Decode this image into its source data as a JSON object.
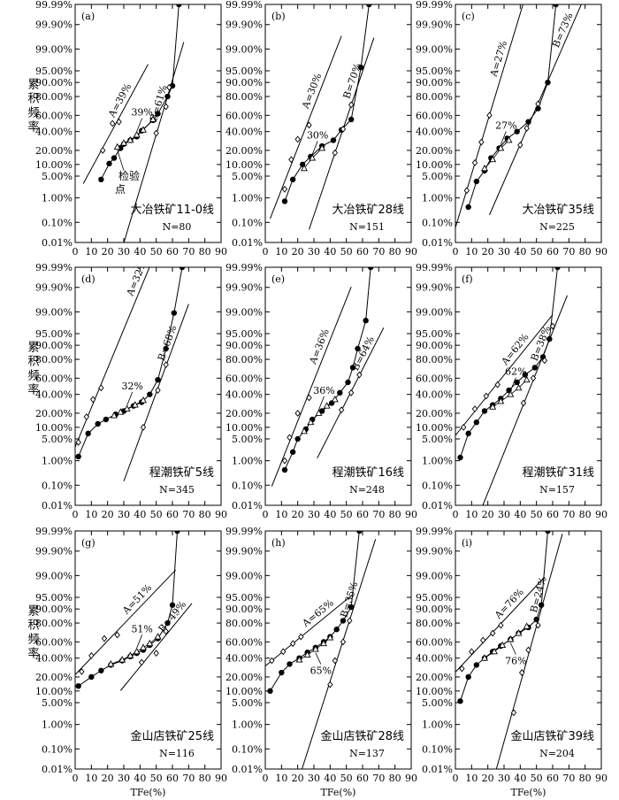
{
  "figure": {
    "ylabel": "累积频率",
    "xlabel": "TFe(%)",
    "y_ticks": [
      "0.01%",
      "0.10%",
      "1.00%",
      "5.00%",
      "10.00%",
      "20.00%",
      "40.00%",
      "60.00%",
      "80.00%",
      "90.00%",
      "95.00%",
      "99.00%",
      "99.90%",
      "99.99%"
    ],
    "y_tick_values": [
      0.01,
      0.1,
      1,
      5,
      10,
      20,
      40,
      60,
      80,
      90,
      95,
      99,
      99.9,
      99.99
    ],
    "x_ticks": [
      "0",
      "10",
      "20",
      "30",
      "40",
      "50",
      "60",
      "70",
      "80",
      "90"
    ],
    "x_tick_values": [
      0,
      10,
      20,
      30,
      40,
      50,
      60,
      70,
      80,
      90
    ],
    "inspection_label": [
      "检验",
      "点"
    ]
  },
  "chart_data": [
    {
      "type": "scatter",
      "panel": "(a)",
      "site": "大冶铁矿11-0线",
      "n_label": "N=80",
      "xlim": [
        0,
        90
      ],
      "ylim": [
        0.01,
        99.99
      ],
      "yscale": "probability",
      "line_a": {
        "label": "A=39%",
        "x": [
          5,
          45
        ]
      },
      "line_b": {
        "label": "B=61%",
        "x": [
          20,
          67
        ]
      },
      "mix_label": "39%",
      "series": [
        {
          "marker": "filled",
          "x": [
            16,
            21,
            24,
            28,
            30,
            34,
            38,
            41,
            48,
            51,
            57,
            60,
            64
          ],
          "y": [
            4,
            10.5,
            14,
            22,
            26,
            30,
            34,
            41,
            54,
            62,
            80,
            88,
            99.99
          ]
        },
        {
          "marker": "triangle",
          "x": [
            26,
            30,
            34,
            38,
            42,
            48
          ],
          "y": [
            23,
            27,
            30,
            36,
            42,
            55
          ]
        },
        {
          "marker": "open-diamond",
          "x": [
            17,
            23,
            27
          ],
          "y": [
            20,
            50,
            52
          ]
        },
        {
          "marker": "open-diamond",
          "x": [
            50,
            56,
            58
          ],
          "y": [
            38,
            70,
            87
          ]
        }
      ]
    },
    {
      "type": "scatter",
      "panel": "(b)",
      "site": "大冶铁矿28线",
      "n_label": "N=151",
      "xlim": [
        0,
        90
      ],
      "ylim": [
        0.01,
        99.99
      ],
      "yscale": "probability",
      "line_a": {
        "label": "A=30%",
        "x": [
          3,
          47
        ]
      },
      "line_b": {
        "label": "B=70%",
        "x": [
          27,
          67
        ]
      },
      "mix_label": "30%",
      "series": [
        {
          "marker": "filled",
          "x": [
            12,
            17,
            23,
            28,
            35,
            42,
            47,
            53,
            59,
            64
          ],
          "y": [
            0.75,
            4,
            10,
            15,
            24,
            30,
            42,
            55,
            96,
            99.99
          ]
        },
        {
          "marker": "triangle",
          "x": [
            24,
            29,
            35
          ],
          "y": [
            8,
            14,
            22
          ]
        },
        {
          "marker": "open-diamond",
          "x": [
            12,
            16,
            20,
            27
          ],
          "y": [
            2,
            13,
            31,
            48
          ]
        },
        {
          "marker": "open-diamond",
          "x": [
            43,
            48,
            53
          ],
          "y": [
            18,
            43,
            72
          ]
        }
      ]
    },
    {
      "type": "scatter",
      "panel": "(c)",
      "site": "大冶铁矿35线",
      "n_label": "N=225",
      "xlim": [
        0,
        90
      ],
      "ylim": [
        0.01,
        99.99
      ],
      "yscale": "probability",
      "line_a": {
        "label": "A=27%",
        "x": [
          0,
          45
        ]
      },
      "line_b": {
        "label": "B=73%",
        "x": [
          21,
          86
        ]
      },
      "mix_label": "27%",
      "series": [
        {
          "marker": "filled",
          "x": [
            8,
            13,
            18,
            22,
            27,
            32,
            38,
            45,
            51,
            57,
            62
          ],
          "y": [
            0.45,
            3.5,
            7,
            14,
            22,
            32,
            40,
            52,
            68,
            90,
            99.99
          ]
        },
        {
          "marker": "triangle",
          "x": [
            18,
            23,
            28,
            33
          ],
          "y": [
            8,
            13,
            22,
            30
          ]
        },
        {
          "marker": "open-diamond",
          "x": [
            7,
            12,
            16,
            21
          ],
          "y": [
            1.8,
            11,
            28,
            60
          ]
        },
        {
          "marker": "open-diamond",
          "x": [
            40,
            44,
            51
          ],
          "y": [
            25,
            44,
            73
          ]
        }
      ]
    },
    {
      "type": "scatter",
      "panel": "(d)",
      "site": "程潮铁矿5线",
      "n_label": "N=345",
      "xlim": [
        0,
        90
      ],
      "ylim": [
        0.01,
        99.99
      ],
      "yscale": "probability",
      "line_a": {
        "label": "A=32%",
        "x": [
          0,
          61
        ]
      },
      "line_b": {
        "label": "B=68%",
        "x": [
          30,
          70
        ]
      },
      "mix_label": "32%",
      "series": [
        {
          "marker": "filled",
          "x": [
            2,
            8,
            14,
            19,
            25,
            30,
            36,
            41,
            46,
            51,
            56,
            61,
            66
          ],
          "y": [
            1.4,
            7,
            12,
            15,
            19,
            22,
            27,
            31,
            40,
            58,
            88,
            98.9,
            99.99
          ]
        },
        {
          "marker": "triangle",
          "x": [
            24,
            28,
            32,
            37,
            42
          ],
          "y": [
            18,
            21,
            24,
            28,
            33
          ]
        },
        {
          "marker": "open-diamond",
          "x": [
            2,
            7,
            11,
            16
          ],
          "y": [
            4,
            17,
            34,
            48
          ]
        },
        {
          "marker": "open-diamond",
          "x": [
            42,
            51,
            56
          ],
          "y": [
            10,
            45,
            75
          ]
        }
      ]
    },
    {
      "type": "scatter",
      "panel": "(e)",
      "site": "程潮铁矿16线",
      "n_label": "N=248",
      "xlim": [
        0,
        90
      ],
      "ylim": [
        0.01,
        99.99
      ],
      "yscale": "probability",
      "line_a": {
        "label": "A=36%",
        "x": [
          4,
          53
        ]
      },
      "line_b": {
        "label": "B=64%",
        "x": [
          32,
          73
        ]
      },
      "mix_label": "36%",
      "series": [
        {
          "marker": "filled",
          "x": [
            12,
            17,
            20,
            25,
            29,
            35,
            41,
            46,
            51,
            54,
            57,
            62,
            65
          ],
          "y": [
            0.45,
            2,
            5,
            9,
            15,
            22,
            30,
            42,
            55,
            72,
            88,
            98,
            99.99
          ]
        },
        {
          "marker": "triangle",
          "x": [
            24,
            28,
            33,
            38,
            43
          ],
          "y": [
            8,
            13,
            20,
            27,
            34
          ]
        },
        {
          "marker": "open-diamond",
          "x": [
            12,
            15,
            20,
            27
          ],
          "y": [
            1,
            5.5,
            20,
            36
          ]
        },
        {
          "marker": "open-diamond",
          "x": [
            47,
            53,
            58
          ],
          "y": [
            23,
            42,
            64
          ]
        }
      ]
    },
    {
      "type": "scatter",
      "panel": "(f)",
      "site": "程潮铁矿31线",
      "n_label": "N=157",
      "xlim": [
        0,
        90
      ],
      "ylim": [
        0.01,
        99.99
      ],
      "yscale": "probability",
      "line_a": {
        "label": "A=62%",
        "x": [
          0,
          60
        ]
      },
      "line_b": {
        "label": "B=38%",
        "x": [
          17,
          69
        ]
      },
      "mix_label": "62%",
      "series": [
        {
          "marker": "filled",
          "x": [
            3,
            8,
            13,
            18,
            23,
            28,
            33,
            38,
            43,
            49,
            54,
            58,
            63
          ],
          "y": [
            1.3,
            7,
            13,
            22,
            28,
            35,
            45,
            55,
            64,
            72,
            82,
            93,
            99.99
          ]
        },
        {
          "marker": "triangle",
          "x": [
            23,
            28,
            34,
            39,
            44
          ],
          "y": [
            26,
            32,
            40,
            48,
            58
          ]
        },
        {
          "marker": "open-diamond",
          "x": [
            5,
            12,
            19,
            26
          ],
          "y": [
            10,
            24,
            38,
            52
          ]
        },
        {
          "marker": "open-diamond",
          "x": [
            42,
            48,
            55,
            60
          ],
          "y": [
            30,
            60,
            79,
            97
          ]
        }
      ]
    },
    {
      "type": "scatter",
      "panel": "(g)",
      "site": "金山店铁矿25线",
      "n_label": "N=116",
      "xlim": [
        0,
        90
      ],
      "ylim": [
        0.01,
        99.99
      ],
      "yscale": "probability",
      "line_a": {
        "label": "A=51%",
        "x": [
          0,
          62
        ]
      },
      "line_b": {
        "label": "B=49%",
        "x": [
          28,
          72
        ]
      },
      "mix_label": "51%",
      "series": [
        {
          "marker": "filled",
          "x": [
            2,
            10,
            16,
            22,
            29,
            34,
            38,
            42,
            46,
            51,
            57,
            60,
            63
          ],
          "y": [
            13,
            20,
            26,
            32,
            37,
            42,
            46,
            50,
            56,
            64,
            80,
            92,
            99.99
          ]
        },
        {
          "marker": "triangle",
          "x": [
            22,
            29,
            34,
            38,
            42,
            46,
            51
          ],
          "y": [
            33,
            38,
            43,
            48,
            53,
            58,
            66
          ]
        },
        {
          "marker": "open-diamond",
          "x": [
            4,
            10,
            18,
            26
          ],
          "y": [
            25,
            43,
            64,
            68
          ]
        },
        {
          "marker": "open-diamond",
          "x": [
            41,
            50,
            56
          ],
          "y": [
            35,
            46,
            72
          ]
        }
      ]
    },
    {
      "type": "scatter",
      "panel": "(h)",
      "site": "金山店铁矿28线",
      "n_label": "N=137",
      "xlim": [
        0,
        90
      ],
      "ylim": [
        0.01,
        99.99
      ],
      "yscale": "probability",
      "line_a": {
        "label": "A=65%",
        "x": [
          0,
          54
        ]
      },
      "line_b": {
        "label": "B=35%",
        "x": [
          18,
          68
        ]
      },
      "mix_label": "65%",
      "series": [
        {
          "marker": "filled",
          "x": [
            3,
            10,
            15,
            21,
            26,
            31,
            36,
            40,
            44,
            48,
            53,
            58
          ],
          "y": [
            10,
            24,
            33,
            40,
            47,
            53,
            60,
            66,
            74,
            82,
            91,
            99.99
          ]
        },
        {
          "marker": "triangle",
          "x": [
            21,
            26,
            31,
            36,
            40
          ],
          "y": [
            38,
            44,
            51,
            58,
            65
          ]
        },
        {
          "marker": "open-diamond",
          "x": [
            4,
            11,
            17,
            22
          ],
          "y": [
            37,
            48,
            58,
            66
          ]
        },
        {
          "marker": "open-diamond",
          "x": [
            40,
            43,
            48,
            52
          ],
          "y": [
            14,
            37,
            60,
            82
          ]
        }
      ]
    },
    {
      "type": "scatter",
      "panel": "(i)",
      "site": "金山店铁矿39线",
      "n_label": "N=204",
      "xlim": [
        0,
        90
      ],
      "ylim": [
        0.01,
        99.99
      ],
      "yscale": "probability",
      "line_a": {
        "label": "A=76%",
        "x": [
          0,
          55
        ]
      },
      "line_b": {
        "label": "B=24%",
        "x": [
          22,
          66
        ]
      },
      "mix_label": "76%",
      "series": [
        {
          "marker": "filled",
          "x": [
            3,
            8,
            13,
            18,
            23,
            28,
            34,
            39,
            45,
            50,
            53,
            57
          ],
          "y": [
            5.5,
            20,
            32,
            40,
            48,
            55,
            63,
            70,
            76,
            83,
            92,
            99.99
          ]
        },
        {
          "marker": "triangle",
          "x": [
            18,
            24,
            29,
            34,
            39,
            44
          ],
          "y": [
            40,
            48,
            56,
            63,
            70,
            77
          ]
        },
        {
          "marker": "open-diamond",
          "x": [
            4,
            10,
            17,
            23,
            28
          ],
          "y": [
            28,
            48,
            62,
            70,
            78
          ]
        },
        {
          "marker": "open-diamond",
          "x": [
            36,
            41,
            45,
            51
          ],
          "y": [
            2.5,
            24,
            50,
            78
          ]
        }
      ]
    }
  ]
}
